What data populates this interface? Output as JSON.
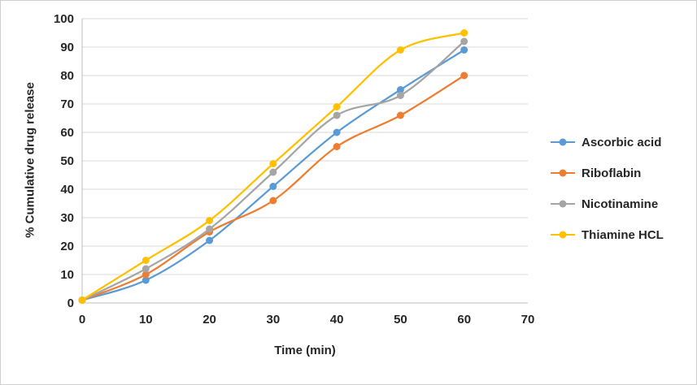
{
  "chart_data": {
    "type": "line",
    "x": [
      0,
      10,
      20,
      30,
      40,
      50,
      60
    ],
    "series": [
      {
        "name": "Ascorbic acid",
        "color": "#5B9BD5",
        "values": [
          1,
          8,
          22,
          41,
          60,
          75,
          89
        ]
      },
      {
        "name": "Riboflabin",
        "color": "#ED7D31",
        "values": [
          1,
          10,
          25,
          36,
          55,
          66,
          80
        ]
      },
      {
        "name": "Nicotinamine",
        "color": "#A5A5A5",
        "values": [
          1,
          12,
          26,
          46,
          66,
          73,
          92
        ]
      },
      {
        "name": "Thiamine HCL",
        "color": "#FFC000",
        "values": [
          1,
          15,
          29,
          49,
          69,
          89,
          95
        ]
      }
    ],
    "title": "",
    "xlabel": "Time (min)",
    "ylabel": "% Cumulative drug release",
    "xlim": [
      0,
      70
    ],
    "ylim": [
      0,
      100
    ],
    "x_ticks": [
      0,
      10,
      20,
      30,
      40,
      50,
      60,
      70
    ],
    "y_ticks": [
      0,
      10,
      20,
      30,
      40,
      50,
      60,
      70,
      80,
      90,
      100
    ],
    "grid": "horizontal",
    "gridline_color": "#D9D9D9",
    "axis_line_color": "#BFBFBF",
    "legend_position": "right",
    "marker": "circle"
  }
}
